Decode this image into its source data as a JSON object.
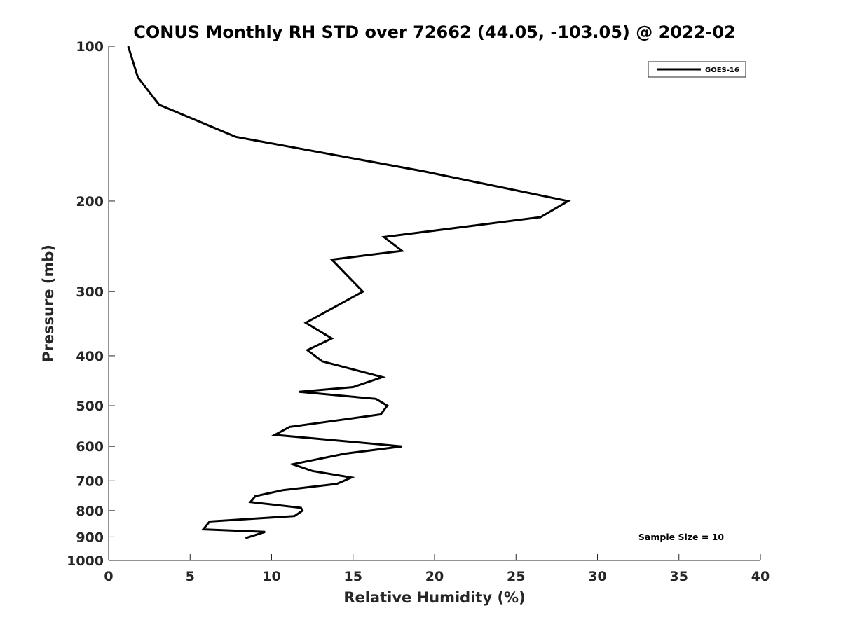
{
  "chart_data": {
    "type": "line",
    "title": "CONUS Monthly RH STD over 72662 (44.05, -103.05) @ 2022-02",
    "xlabel": "Relative Humidity (%)",
    "ylabel": "Pressure (mb)",
    "xlim": [
      0,
      40
    ],
    "ylim": [
      100,
      1000
    ],
    "y_scale": "log",
    "y_reversed": true,
    "xticks": [
      0,
      5,
      10,
      15,
      20,
      25,
      30,
      35,
      40
    ],
    "xtick_labels": [
      "0",
      "5",
      "10",
      "15",
      "20",
      "25",
      "30",
      "35",
      "40"
    ],
    "yticks": [
      100,
      200,
      300,
      400,
      500,
      600,
      700,
      800,
      900,
      1000
    ],
    "ytick_labels": [
      "100",
      "200",
      "300",
      "400",
      "500",
      "600",
      "700",
      "800",
      "900",
      "1000"
    ],
    "grid": false,
    "legend_position": "top-right",
    "series": [
      {
        "name": "GOES-16",
        "color": "#000000",
        "x": [
          1.2,
          1.8,
          3.1,
          7.8,
          19.3,
          28.2,
          26.5,
          16.9,
          18.0,
          13.7,
          15.6,
          12.1,
          13.7,
          12.2,
          13.1,
          16.8,
          15.0,
          11.7,
          16.4,
          17.1,
          16.7,
          11.1,
          10.2,
          18.0,
          14.5,
          11.3,
          12.5,
          14.9,
          14.0,
          10.7,
          9.0,
          8.7,
          11.8,
          11.9,
          11.4,
          6.2,
          5.8,
          9.6,
          8.4
        ],
        "y": [
          100,
          115,
          130,
          150,
          175,
          200,
          215,
          235,
          250,
          260,
          300,
          345,
          370,
          390,
          410,
          440,
          460,
          470,
          485,
          500,
          520,
          550,
          570,
          600,
          620,
          650,
          670,
          690,
          710,
          730,
          750,
          770,
          790,
          800,
          820,
          840,
          870,
          880,
          905
        ]
      }
    ],
    "annotations": [
      {
        "text": "Sample Size = 10",
        "position": "lower-right"
      }
    ],
    "colors": {
      "axes": "#262626",
      "line": "#000000",
      "background": "#ffffff"
    }
  }
}
